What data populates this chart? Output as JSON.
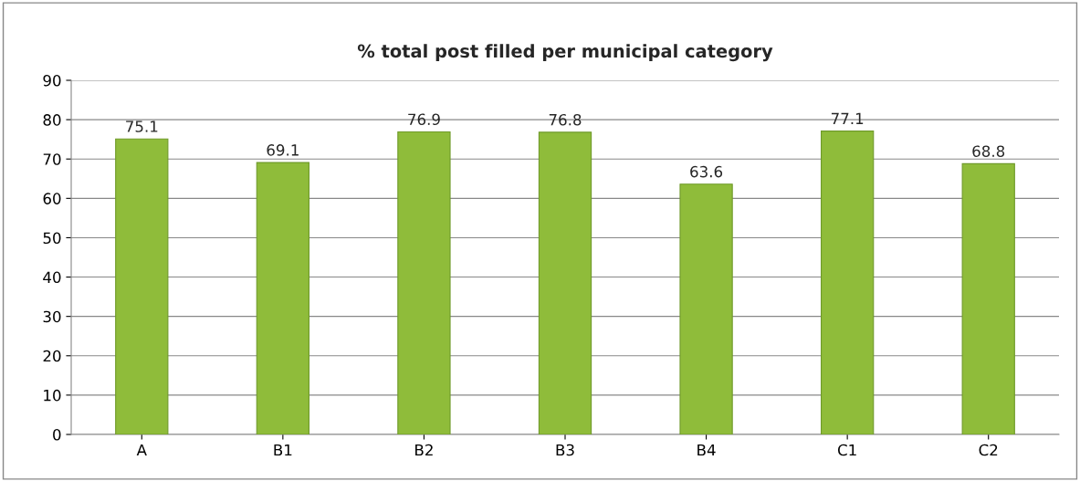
{
  "chart_data": {
    "type": "bar",
    "title": "% total post filled per municipal category",
    "categories": [
      "A",
      "B1",
      "B2",
      "B3",
      "B4",
      "C1",
      "C2"
    ],
    "values": [
      75.1,
      69.1,
      76.9,
      76.8,
      63.6,
      77.1,
      68.8
    ],
    "color": "#8fbc3a",
    "ylim": [
      0,
      90
    ],
    "yticks": [
      0,
      10,
      20,
      30,
      40,
      50,
      60,
      70,
      80,
      90
    ],
    "grid": "y",
    "data_labels": true,
    "legend": false
  }
}
